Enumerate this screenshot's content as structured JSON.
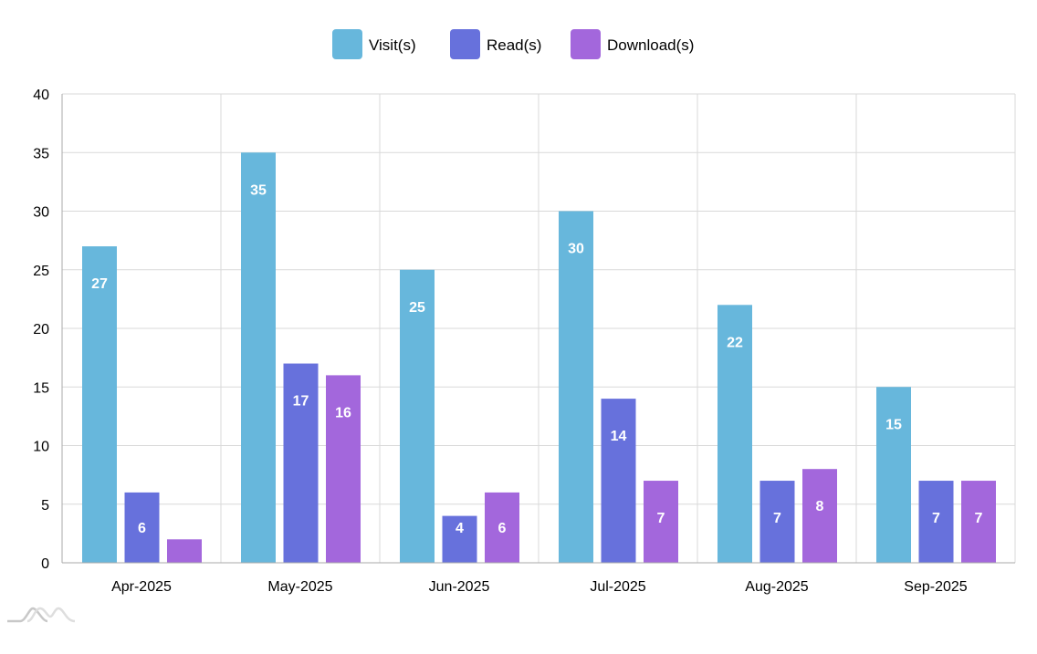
{
  "chart_data": {
    "type": "bar",
    "title": "",
    "xlabel": "",
    "ylabel": "",
    "ylim": [
      0,
      40
    ],
    "yticks": [
      0,
      5,
      10,
      15,
      20,
      25,
      30,
      35,
      40
    ],
    "grid": true,
    "legend_position": "top-center",
    "categories": [
      "Apr-2025",
      "May-2025",
      "Jun-2025",
      "Jul-2025",
      "Aug-2025",
      "Sep-2025"
    ],
    "series": [
      {
        "name": "Visit(s)",
        "color": "#67b7dc",
        "values": [
          27,
          35,
          25,
          30,
          22,
          15
        ]
      },
      {
        "name": "Read(s)",
        "color": "#6771dc",
        "values": [
          6,
          17,
          4,
          14,
          7,
          7
        ]
      },
      {
        "name": "Download(s)",
        "color": "#a367dc",
        "values": [
          2,
          16,
          6,
          7,
          8,
          7
        ]
      }
    ]
  }
}
